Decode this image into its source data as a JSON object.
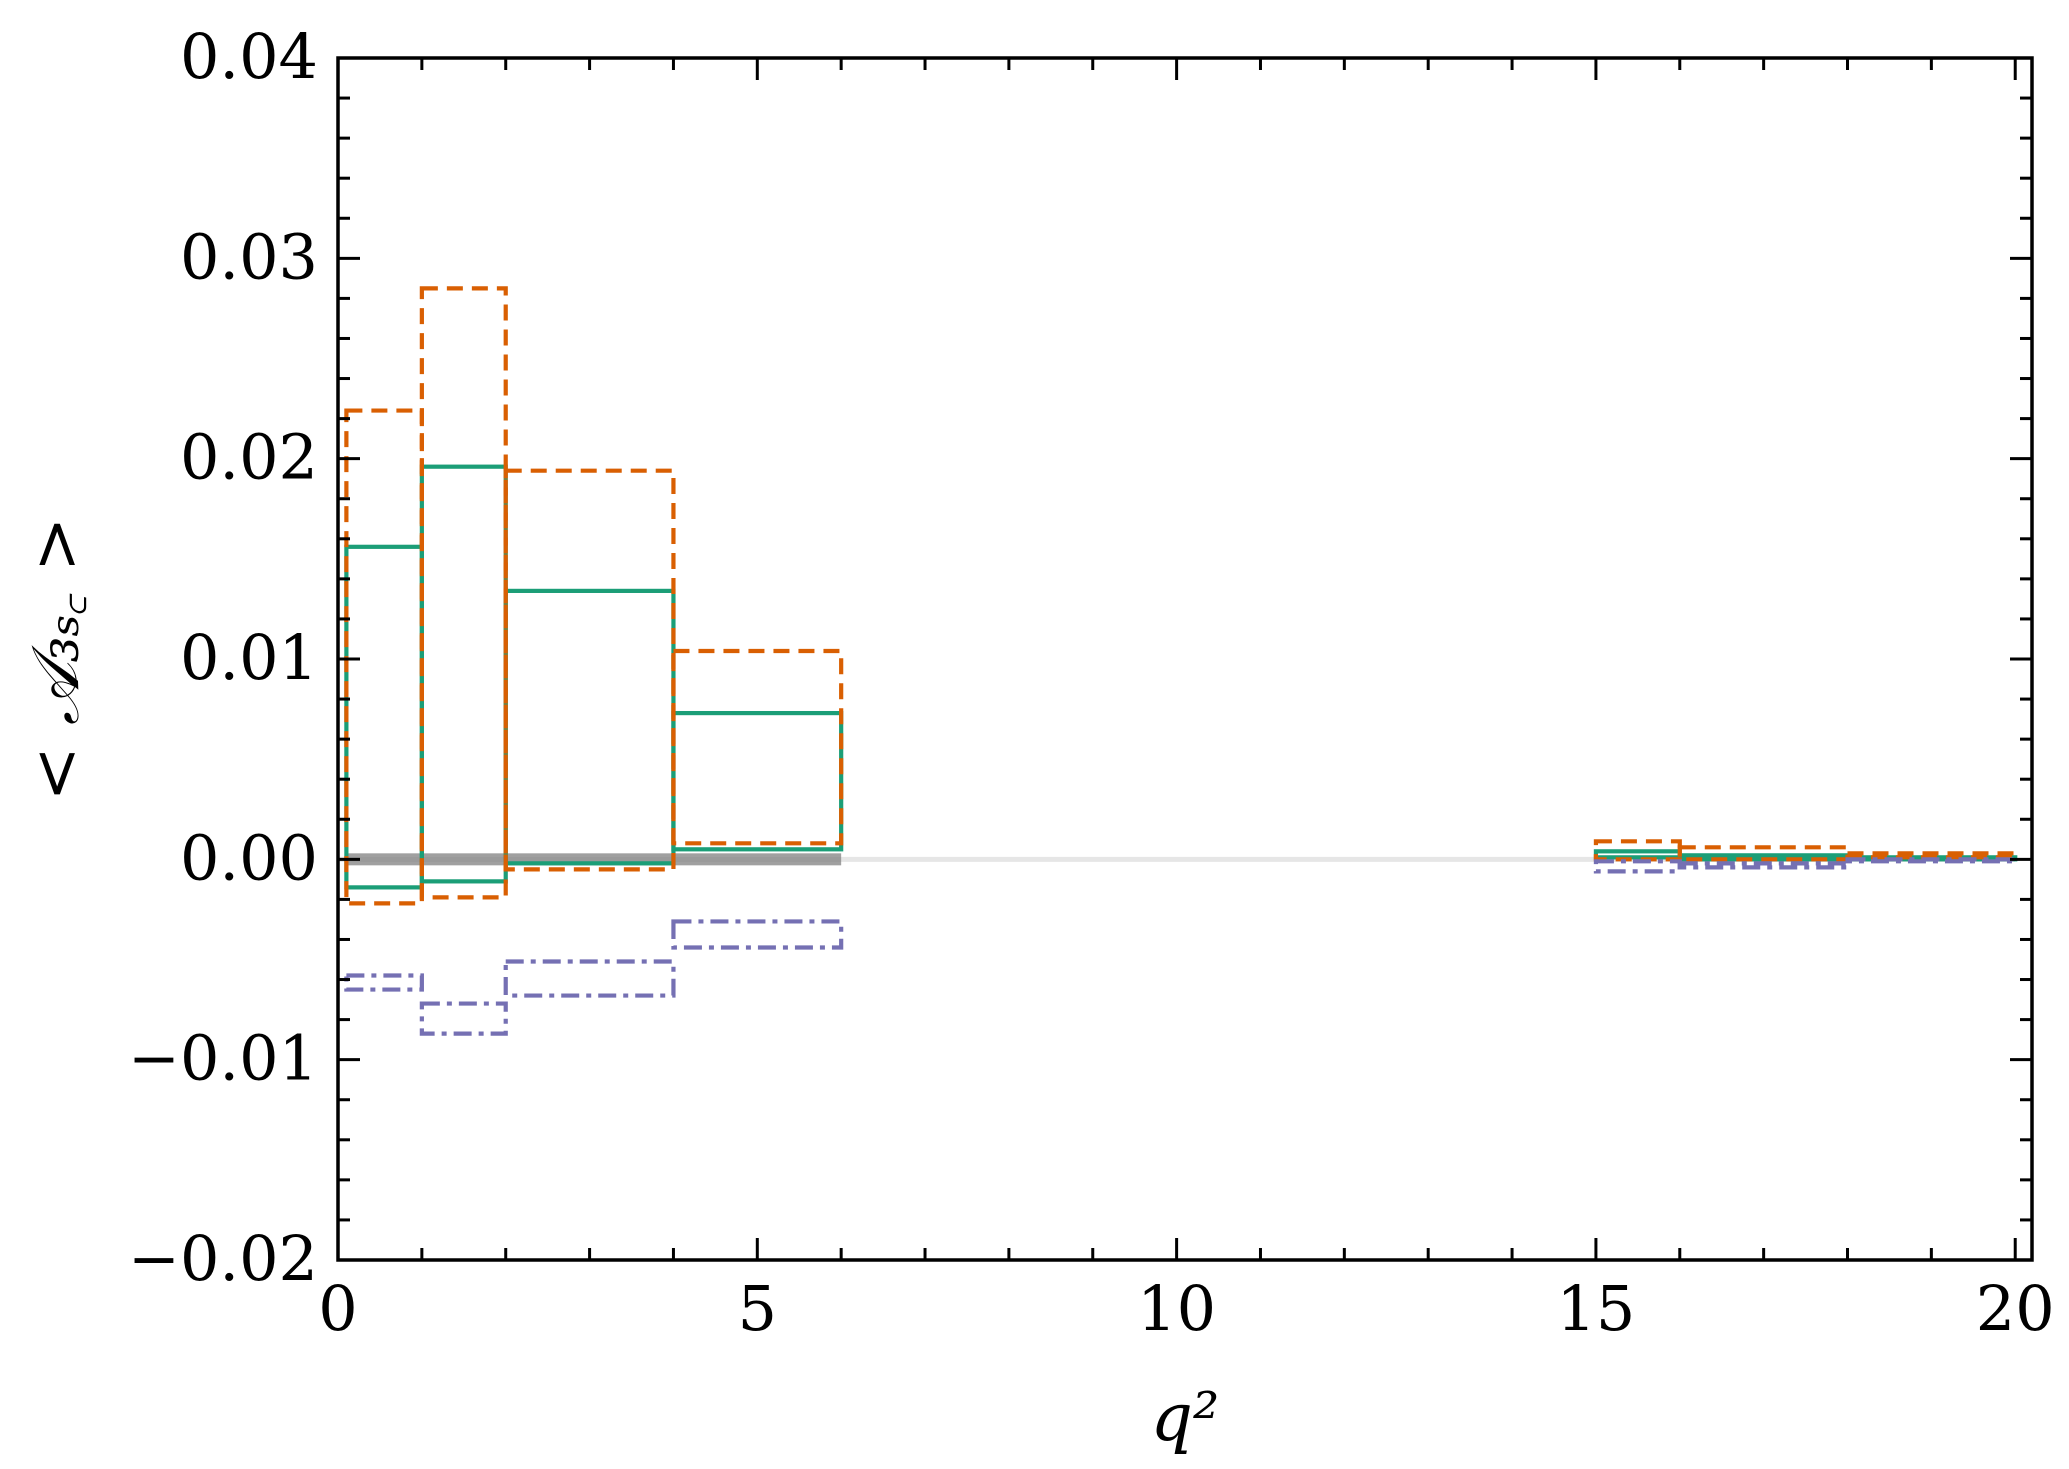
{
  "chart_data": {
    "type": "bar",
    "xlabel": "q²",
    "ylabel": "< 𝒜₃ₛ꜀ >",
    "xlim": [
      0,
      20.2
    ],
    "ylim": [
      -0.02,
      0.04
    ],
    "x_ticks": [
      "0",
      "5",
      "10",
      "15",
      "20"
    ],
    "y_ticks": [
      "−0.02",
      "−0.01",
      "0.00",
      "0.01",
      "0.02",
      "0.03",
      "0.04"
    ],
    "grid": false,
    "colors": {
      "teal": "#1b9e77",
      "orange": "#d95f02",
      "purple": "#7570b3",
      "gray": "#808080",
      "light_gray": "#e6e6e6"
    },
    "bins": [
      [
        0.1,
        1
      ],
      [
        1,
        2
      ],
      [
        2,
        4
      ],
      [
        4,
        6
      ],
      [
        15,
        16
      ],
      [
        16,
        18
      ],
      [
        18,
        20
      ]
    ],
    "series": [
      {
        "style": "solid",
        "color": "#1b9e77",
        "upper": [
          0.0156,
          0.0196,
          0.0134,
          0.0073,
          0.0004,
          0.0002,
          0.0001
        ],
        "lower": [
          -0.0014,
          -0.0011,
          -0.0002,
          0.0005,
          0.0001,
          0.0,
          0.0
        ]
      },
      {
        "style": "dashed",
        "color": "#d95f02",
        "upper": [
          0.0224,
          0.0285,
          0.0194,
          0.0104,
          0.0009,
          0.0006,
          0.0003
        ],
        "lower": [
          -0.0022,
          -0.0019,
          -0.0005,
          0.0008,
          0.0,
          0.0,
          0.0001
        ]
      },
      {
        "style": "dashdot",
        "color": "#7570b3",
        "upper": [
          -0.0058,
          -0.0072,
          -0.0051,
          -0.0031,
          -0.0001,
          -0.0002,
          0.0
        ],
        "lower": [
          -0.0065,
          -0.0087,
          -0.0068,
          -0.0044,
          -0.0006,
          -0.0004,
          -0.0001
        ]
      }
    ],
    "sm_band": {
      "color": "#808080",
      "x": [
        0.1,
        6
      ],
      "lower": -0.0003,
      "upper": 0.0003
    },
    "zero_line": {
      "color": "#e6e6e6",
      "value": 0.0
    }
  }
}
